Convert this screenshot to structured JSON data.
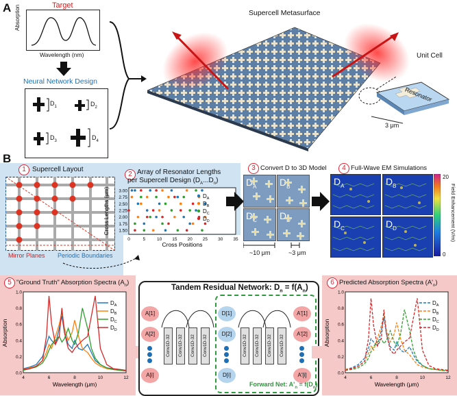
{
  "panels": {
    "a": "A",
    "b": "B"
  },
  "panelA": {
    "target_title": "Target",
    "target_ylabel": "Absorption",
    "target_xlabel": "Wavelength (nm)",
    "nn_title": "Neural Network Design",
    "nn_labels": [
      "D",
      "D",
      "D",
      "D"
    ],
    "nn_subs": [
      "1",
      "2",
      "3",
      "4"
    ],
    "supercell_title": "Supercell Metasurface",
    "unit_cell": "Unit Cell",
    "resonator": "Resonator",
    "scale": "3 μm"
  },
  "step1": {
    "num": "1",
    "title": "Supercell Layout",
    "mirror": "Mirror Planes",
    "periodic": "Periodic Boundaries"
  },
  "step2": {
    "num": "2",
    "title_line1": "Array of Resonator Lengths",
    "title_line2": "per Supercell Design (D",
    "title_sub1": "A",
    "title_mid": "...D",
    "title_sub2": "n",
    "title_end": ")"
  },
  "step3": {
    "num": "3",
    "title": "Convert D to 3D Model",
    "scale1": "~10 μm",
    "scale2": "~3 μm"
  },
  "step4": {
    "num": "4",
    "title": "Full-Wave EM Simulations",
    "cbar_label": "Field Enhancement (V/m)",
    "cbar_max": "20",
    "cbar_min": "0"
  },
  "step5": {
    "num": "5",
    "title": "\"Ground Truth\" Absorption Spectra (A",
    "title_sub": "n",
    "title_end": ")"
  },
  "step6": {
    "num": "6",
    "title": "Predicted Absorption Spectra (A'",
    "title_sub": "n",
    "title_end": ")"
  },
  "tandem": {
    "title": "Tandem Residual Network: D",
    "title_sub": "n",
    "title_mid": " = f(A",
    "title_sub2": "n",
    "title_end": ")",
    "conv_label": "Conv1D-32",
    "forward": "Forward Net: A'",
    "forward_sub": "n",
    "forward_end": " = f(D",
    "forward_sub2": "n",
    "forward_close": ")",
    "inputs": [
      "A[1]",
      "A[2]",
      "A[i]"
    ],
    "mids": [
      "D[1]",
      "D[2]",
      "D[i]"
    ],
    "outputs": [
      "A'[1]",
      "A'[2]",
      "A'[i]"
    ]
  },
  "sims": [
    "D",
    "D",
    "D",
    "D"
  ],
  "sim_subs": [
    "A",
    "B",
    "C",
    "D"
  ],
  "colors": {
    "A": "#1f77b4",
    "B": "#ff7f0e",
    "C": "#2ca02c",
    "D": "#d62728",
    "accent_red": "#d22",
    "accent_blue": "#1f6fb5"
  },
  "chart_data": [
    {
      "type": "scatter",
      "xlabel": "Cross Positions",
      "ylabel": "Cross Lengths (μm)",
      "xticks": [
        0,
        5,
        10,
        15,
        20,
        25,
        30,
        35
      ],
      "yticks": [
        "1.50",
        "1.75",
        "2.00",
        "2.25",
        "2.50",
        "2.75",
        "3.00"
      ],
      "xlim": [
        0,
        35
      ],
      "ylim": [
        1.35,
        3.1
      ],
      "series": [
        {
          "name": "D",
          "sub": "A",
          "x": [
            1,
            2,
            3,
            5,
            6,
            7,
            9,
            10,
            12,
            14,
            16,
            18,
            20,
            22,
            24,
            25
          ],
          "y": [
            3.0,
            3.0,
            2.5,
            1.75,
            2.25,
            3.0,
            2.0,
            2.5,
            1.5,
            3.0,
            2.75,
            2.0,
            1.75,
            2.25,
            3.0,
            2.5
          ]
        },
        {
          "name": "D",
          "sub": "B",
          "x": [
            1,
            3,
            4,
            6,
            8,
            10,
            11,
            13,
            15,
            17,
            19,
            21,
            23,
            25
          ],
          "y": [
            2.75,
            2.0,
            2.5,
            2.75,
            1.5,
            2.25,
            3.0,
            2.75,
            2.0,
            2.5,
            3.0,
            1.75,
            2.75,
            2.0
          ]
        },
        {
          "name": "D",
          "sub": "C",
          "x": [
            2,
            4,
            5,
            7,
            9,
            11,
            12,
            14,
            16,
            18,
            20,
            22,
            24
          ],
          "y": [
            1.75,
            2.75,
            1.5,
            2.0,
            2.75,
            1.75,
            2.5,
            2.25,
            1.5,
            2.75,
            2.25,
            3.0,
            1.5
          ]
        },
        {
          "name": "D",
          "sub": "D",
          "x": [
            0,
            2,
            4,
            6,
            8,
            9,
            11,
            13,
            15,
            17,
            19,
            21,
            23,
            25
          ],
          "y": [
            2.25,
            1.5,
            3.0,
            2.0,
            2.25,
            3.0,
            2.0,
            1.75,
            2.75,
            2.25,
            1.5,
            2.5,
            2.0,
            1.75
          ]
        }
      ]
    },
    {
      "type": "line",
      "xlabel": "Wavelength (μm)",
      "ylabel": "Absorption",
      "xlim": [
        4,
        12
      ],
      "ylim": [
        0,
        1.0
      ],
      "xticks": [
        4,
        6,
        8,
        10,
        12
      ],
      "yticks": [
        "0.0",
        "0.2",
        "0.4",
        "0.6",
        "0.8",
        "1.0"
      ],
      "x": [
        4.0,
        4.5,
        5.0,
        5.5,
        5.8,
        6.0,
        6.2,
        6.5,
        6.8,
        7.0,
        7.2,
        7.5,
        7.8,
        8.0,
        8.3,
        8.6,
        9.0,
        9.3,
        9.6,
        10.0,
        10.5,
        11.0,
        11.5,
        12.0
      ],
      "series": [
        {
          "name": "D",
          "sub": "A",
          "values": [
            0.05,
            0.07,
            0.1,
            0.2,
            0.35,
            0.45,
            0.4,
            0.35,
            0.55,
            0.7,
            0.5,
            0.35,
            0.3,
            0.4,
            0.3,
            0.28,
            0.35,
            0.25,
            0.15,
            0.1,
            0.06,
            0.05,
            0.04,
            0.03
          ]
        },
        {
          "name": "D",
          "sub": "B",
          "values": [
            0.04,
            0.06,
            0.08,
            0.15,
            0.25,
            0.35,
            0.3,
            0.45,
            0.6,
            0.75,
            0.55,
            0.4,
            0.5,
            0.65,
            0.45,
            0.3,
            0.25,
            0.18,
            0.12,
            0.08,
            0.05,
            0.04,
            0.03,
            0.03
          ]
        },
        {
          "name": "D",
          "sub": "C",
          "values": [
            0.03,
            0.05,
            0.07,
            0.12,
            0.2,
            0.28,
            0.35,
            0.4,
            0.45,
            0.38,
            0.42,
            0.55,
            0.4,
            0.35,
            0.5,
            0.8,
            0.55,
            0.3,
            0.18,
            0.1,
            0.06,
            0.04,
            0.03,
            0.02
          ]
        },
        {
          "name": "D",
          "sub": "D",
          "values": [
            0.04,
            0.05,
            0.08,
            0.15,
            0.45,
            0.95,
            0.6,
            0.35,
            0.45,
            0.8,
            0.5,
            0.3,
            0.25,
            0.3,
            0.35,
            0.4,
            0.45,
            0.7,
            0.95,
            0.3,
            0.1,
            0.05,
            0.04,
            0.03
          ]
        }
      ]
    },
    {
      "type": "line",
      "xlabel": "Wavelength (μm)",
      "ylabel": "Absorption",
      "xlim": [
        4,
        12
      ],
      "ylim": [
        0,
        1.0
      ],
      "xticks": [
        4,
        6,
        8,
        10,
        12
      ],
      "yticks": [
        "0.0",
        "0.2",
        "0.4",
        "0.6",
        "0.8",
        "1.0"
      ],
      "x": [
        4.0,
        4.5,
        5.0,
        5.5,
        5.8,
        6.0,
        6.2,
        6.5,
        6.8,
        7.0,
        7.2,
        7.5,
        7.8,
        8.0,
        8.3,
        8.6,
        9.0,
        9.3,
        9.6,
        10.0,
        10.5,
        11.0,
        11.5,
        12.0
      ],
      "series": [
        {
          "name": "D",
          "sub": "A",
          "values": [
            0.04,
            0.06,
            0.1,
            0.18,
            0.3,
            0.42,
            0.38,
            0.33,
            0.52,
            0.68,
            0.48,
            0.32,
            0.28,
            0.38,
            0.28,
            0.25,
            0.32,
            0.22,
            0.14,
            0.09,
            0.05,
            0.04,
            0.03,
            0.03
          ]
        },
        {
          "name": "D",
          "sub": "B",
          "values": [
            0.04,
            0.05,
            0.08,
            0.14,
            0.24,
            0.33,
            0.28,
            0.42,
            0.58,
            0.72,
            0.52,
            0.38,
            0.48,
            0.62,
            0.42,
            0.28,
            0.22,
            0.16,
            0.1,
            0.07,
            0.05,
            0.04,
            0.03,
            0.03
          ]
        },
        {
          "name": "D",
          "sub": "C",
          "values": [
            0.03,
            0.04,
            0.06,
            0.11,
            0.18,
            0.26,
            0.33,
            0.38,
            0.42,
            0.36,
            0.4,
            0.52,
            0.38,
            0.33,
            0.48,
            0.78,
            0.52,
            0.28,
            0.16,
            0.09,
            0.05,
            0.04,
            0.03,
            0.02
          ]
        },
        {
          "name": "D",
          "sub": "D",
          "values": [
            0.03,
            0.05,
            0.08,
            0.14,
            0.42,
            0.92,
            0.58,
            0.33,
            0.42,
            0.78,
            0.48,
            0.28,
            0.23,
            0.28,
            0.33,
            0.38,
            0.43,
            0.68,
            0.92,
            0.28,
            0.09,
            0.05,
            0.04,
            0.03
          ]
        }
      ]
    }
  ]
}
